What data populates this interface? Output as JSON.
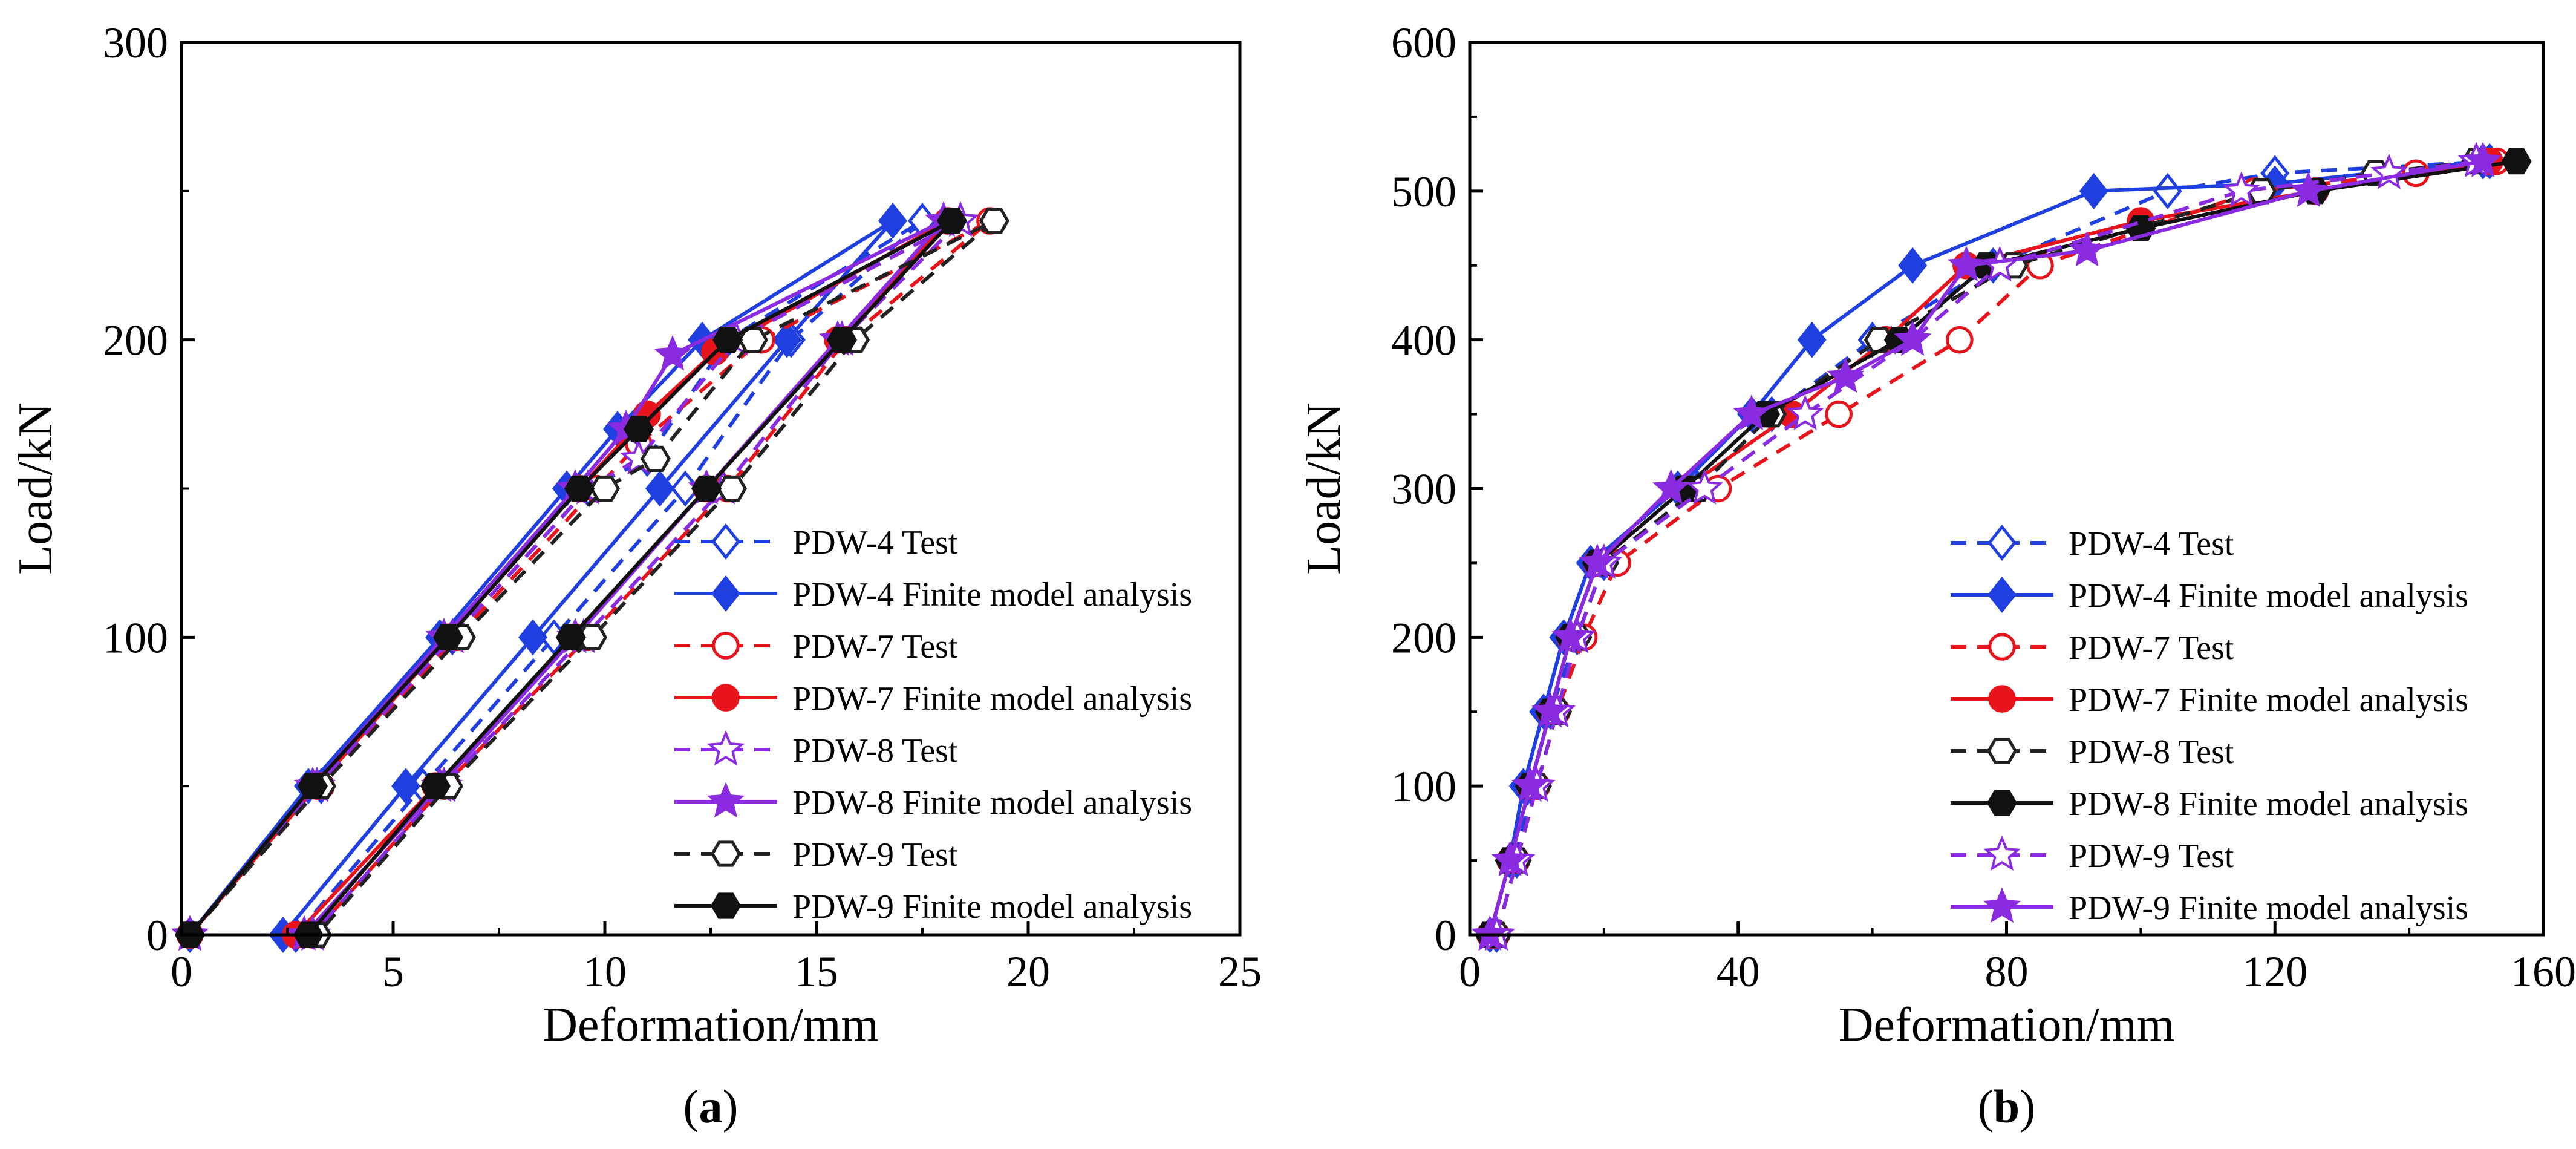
{
  "chart_data": [
    {
      "type": "line",
      "panel_label": "(a)",
      "panel_letter": "a",
      "xlabel": "Deformation/mm",
      "ylabel": "Load/kN",
      "xlim": [
        0,
        25
      ],
      "ylim": [
        0,
        300
      ],
      "xticks": [
        0,
        5,
        10,
        15,
        20,
        25
      ],
      "yticks": [
        0,
        100,
        200,
        300
      ],
      "legend_position": "bottom-right",
      "series": [
        {
          "name": "PDW-4 Test",
          "color": "#1f3fe0",
          "dash": true,
          "marker": "diamond",
          "filled": false,
          "x": [
            0.2,
            3.3,
            6.4,
            9.6,
            11.0,
            12.9,
            17.5,
            14.4,
            11.9,
            8.8,
            5.7,
            2.7
          ],
          "y": [
            0,
            50,
            100,
            150,
            160,
            200,
            240,
            200,
            150,
            100,
            50,
            0
          ]
        },
        {
          "name": "PDW-4 Finite model analysis",
          "color": "#1f3fe0",
          "dash": false,
          "marker": "diamond",
          "filled": true,
          "x": [
            0.2,
            3.0,
            6.1,
            9.1,
            10.3,
            12.3,
            16.8,
            14.3,
            11.3,
            8.3,
            5.3,
            2.4
          ],
          "y": [
            0,
            50,
            100,
            150,
            170,
            200,
            240,
            200,
            150,
            100,
            50,
            0
          ]
        },
        {
          "name": "PDW-7 Test",
          "color": "#e8141c",
          "dash": true,
          "marker": "circle",
          "filled": false,
          "x": [
            0.2,
            3.3,
            6.5,
            9.8,
            10.8,
            13.7,
            19.1,
            15.7,
            12.9,
            9.6,
            6.2,
            3.1
          ],
          "y": [
            0,
            50,
            100,
            150,
            165,
            200,
            240,
            200,
            150,
            100,
            50,
            0
          ]
        },
        {
          "name": "PDW-7 Finite model analysis",
          "color": "#e8141c",
          "dash": false,
          "marker": "circle",
          "filled": true,
          "x": [
            0.2,
            3.2,
            6.3,
            9.4,
            11.0,
            12.6,
            18.1,
            15.5,
            12.4,
            9.3,
            6.0,
            2.7
          ],
          "y": [
            0,
            50,
            100,
            150,
            175,
            196,
            240,
            200,
            150,
            100,
            50,
            0
          ]
        },
        {
          "name": "PDW-8 Test",
          "color": "#8a2be2",
          "dash": true,
          "marker": "star",
          "filled": false,
          "x": [
            0.2,
            3.2,
            6.4,
            9.6,
            10.8,
            13.1,
            18.4,
            15.6,
            12.8,
            9.5,
            6.2,
            3.1
          ],
          "y": [
            0,
            50,
            100,
            150,
            160,
            200,
            240,
            200,
            150,
            100,
            50,
            0
          ]
        },
        {
          "name": "PDW-8 Finite model analysis",
          "color": "#8a2be2",
          "dash": false,
          "marker": "star",
          "filled": true,
          "x": [
            0.2,
            3.1,
            6.2,
            9.3,
            10.5,
            11.6,
            18.0,
            15.5,
            12.4,
            9.3,
            6.1,
            2.9
          ],
          "y": [
            0,
            50,
            100,
            150,
            170,
            195,
            240,
            200,
            150,
            100,
            50,
            0
          ]
        },
        {
          "name": "PDW-9 Test",
          "color": "#222222",
          "dash": true,
          "marker": "hexagon",
          "filled": false,
          "x": [
            0.2,
            3.3,
            6.6,
            10.0,
            11.2,
            13.5,
            19.2,
            15.9,
            13.0,
            9.7,
            6.3,
            3.2
          ],
          "y": [
            0,
            50,
            100,
            150,
            160,
            200,
            240,
            200,
            150,
            100,
            50,
            0
          ]
        },
        {
          "name": "PDW-9 Finite model analysis",
          "color": "#111111",
          "dash": false,
          "marker": "hexagon",
          "filled": true,
          "x": [
            0.2,
            3.1,
            6.3,
            9.4,
            10.8,
            12.9,
            18.2,
            15.6,
            12.4,
            9.2,
            6.0,
            3.0
          ],
          "y": [
            0,
            50,
            100,
            150,
            170,
            200,
            240,
            200,
            150,
            100,
            50,
            0
          ]
        }
      ]
    },
    {
      "type": "line",
      "panel_label": "(b)",
      "panel_letter": "b",
      "xlabel": "Deformation/mm",
      "ylabel": "Load/kN",
      "xlim": [
        0,
        160
      ],
      "ylim": [
        0,
        600
      ],
      "xticks": [
        0,
        40,
        80,
        120,
        160
      ],
      "yticks": [
        0,
        100,
        200,
        300,
        400,
        500,
        600
      ],
      "legend_position": "bottom-right",
      "series": [
        {
          "name": "PDW-4 Test",
          "color": "#1f3fe0",
          "dash": true,
          "marker": "diamond",
          "filled": false,
          "x": [
            4,
            7,
            9,
            12,
            16,
            20,
            34,
            45,
            60,
            78,
            104,
            120,
            152
          ],
          "y": [
            0,
            50,
            100,
            150,
            200,
            250,
            300,
            350,
            400,
            450,
            500,
            512,
            520
          ]
        },
        {
          "name": "PDW-4 Finite model analysis",
          "color": "#1f3fe0",
          "dash": false,
          "marker": "diamond",
          "filled": true,
          "x": [
            3,
            6,
            8,
            11,
            14,
            18,
            31,
            42,
            51,
            66,
            93,
            120,
            151
          ],
          "y": [
            0,
            50,
            100,
            150,
            200,
            250,
            300,
            350,
            400,
            450,
            500,
            505,
            520
          ]
        },
        {
          "name": "PDW-7 Test",
          "color": "#e8141c",
          "dash": true,
          "marker": "circle",
          "filled": false,
          "x": [
            4,
            7,
            10,
            13,
            17,
            22,
            37,
            55,
            73,
            85,
            117,
            141,
            153
          ],
          "y": [
            0,
            50,
            100,
            150,
            200,
            250,
            300,
            350,
            400,
            450,
            500,
            512,
            520
          ]
        },
        {
          "name": "PDW-7 Finite model analysis",
          "color": "#e8141c",
          "dash": false,
          "marker": "circle",
          "filled": true,
          "x": [
            3,
            6,
            9,
            12,
            15,
            19,
            32,
            48,
            62,
            74,
            100,
            126,
            152
          ],
          "y": [
            0,
            50,
            100,
            150,
            200,
            250,
            300,
            350,
            400,
            450,
            480,
            500,
            520
          ]
        },
        {
          "name": "PDW-8 Test",
          "color": "#222222",
          "dash": true,
          "marker": "hexagon",
          "filled": false,
          "x": [
            4,
            7,
            10,
            13,
            16,
            20,
            34,
            45,
            61,
            81,
            118,
            135,
            150
          ],
          "y": [
            0,
            50,
            100,
            150,
            200,
            250,
            300,
            350,
            400,
            450,
            500,
            512,
            520
          ]
        },
        {
          "name": "PDW-8 Finite model analysis",
          "color": "#111111",
          "dash": false,
          "marker": "hexagon",
          "filled": true,
          "x": [
            3,
            6,
            9,
            12,
            15,
            19,
            32,
            44,
            64,
            77,
            100,
            126,
            156
          ],
          "y": [
            0,
            50,
            100,
            150,
            200,
            250,
            300,
            350,
            400,
            450,
            475,
            500,
            520
          ]
        },
        {
          "name": "PDW-9 Test",
          "color": "#8a2be2",
          "dash": true,
          "marker": "star",
          "filled": false,
          "x": [
            4,
            7,
            10,
            13,
            16,
            20,
            35,
            50,
            66,
            79,
            115,
            137,
            150
          ],
          "y": [
            0,
            50,
            100,
            150,
            200,
            250,
            300,
            350,
            400,
            450,
            500,
            512,
            520
          ]
        },
        {
          "name": "PDW-9 Finite model analysis",
          "color": "#8a2be2",
          "dash": false,
          "marker": "star",
          "filled": true,
          "x": [
            3,
            6,
            9,
            12,
            15,
            19,
            30,
            42,
            56,
            66,
            74,
            92,
            125,
            151
          ],
          "y": [
            0,
            50,
            100,
            150,
            200,
            250,
            300,
            350,
            375,
            400,
            450,
            460,
            500,
            520
          ]
        }
      ]
    }
  ]
}
